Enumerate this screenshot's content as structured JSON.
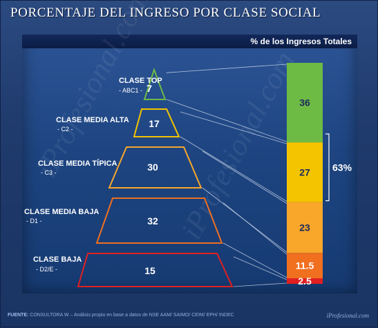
{
  "title": "PORCENTAJE DEL INGRESO POR CLASE SOCIAL",
  "panel_header": "% de los Ingresos Totales",
  "watermark": "iProfesional.com",
  "source": {
    "label": "FUENTE:",
    "text": " CONSULTORA W – Análisis propio en base a datos de NSE AAM/ SAIMO/ CEIM/ EPH/ INDEC"
  },
  "brand": "iProfesional.com",
  "colors": {
    "top": "#6dbb45",
    "media_alta": "#f5c400",
    "media_tipica": "#f8a72a",
    "media_baja": "#f07020",
    "baja": "#e02020"
  },
  "chart_data": {
    "type": "bar",
    "title": "PORCENTAJE DEL INGRESO POR CLASE SOCIAL",
    "ylabel": "% de los Ingresos Totales",
    "categories": [
      "CLASE TOP",
      "CLASE MEDIA ALTA",
      "CLASE MEDIA TÍPICA",
      "CLASE MEDIA BAJA",
      "CLASE BAJA"
    ],
    "codes": [
      "- ABC1 -",
      "- C2 -",
      "- C3 -",
      "- D1 -",
      "- D2/E -"
    ],
    "values": [
      7,
      17,
      30,
      32,
      15
    ],
    "stacked_bar": {
      "segments": [
        {
          "label": "36",
          "value": 36,
          "color": "#6dbb45"
        },
        {
          "label": "27",
          "value": 27,
          "color": "#f5c400"
        },
        {
          "label": "23",
          "value": 23,
          "color": "#f8a72a"
        },
        {
          "label": "11.5",
          "value": 11.5,
          "color": "#f07020"
        },
        {
          "label": "2.5",
          "value": 2.5,
          "color": "#e02020"
        }
      ],
      "bracket_label": "63%"
    }
  }
}
